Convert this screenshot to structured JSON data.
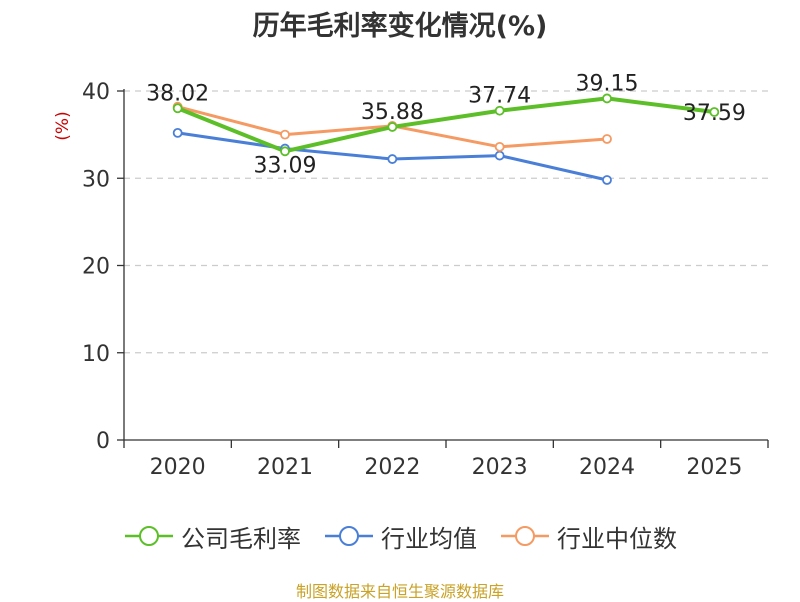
{
  "chart_data": {
    "type": "line",
    "title": "历年毛利率变化情况(%)",
    "ylabel": "(%)",
    "xlabel": "",
    "categories": [
      "2020",
      "2021",
      "2022",
      "2023",
      "2024",
      "2025"
    ],
    "ylim": [
      0,
      40
    ],
    "yticks": [
      0,
      10,
      20,
      30,
      40
    ],
    "grid": true,
    "legend_position": "bottom",
    "series": [
      {
        "name": "公司毛利率",
        "color": "#5cbf28",
        "values": [
          38.02,
          33.09,
          35.88,
          37.74,
          39.15,
          37.59
        ],
        "labels": [
          "38.02",
          "33.09",
          "35.88",
          "37.74",
          "39.15",
          "37.59"
        ]
      },
      {
        "name": "行业均值",
        "color": "#4a7fd8",
        "values": [
          35.2,
          33.4,
          32.2,
          32.6,
          29.8,
          null
        ]
      },
      {
        "name": "行业中位数",
        "color": "#f49a62",
        "values": [
          38.2,
          35.0,
          36.0,
          33.6,
          34.5,
          null
        ]
      }
    ]
  },
  "source_note": "制图数据来自恒生聚源数据库",
  "colors": {
    "ylabel": "#cc0000",
    "axis": "#333333",
    "grid": "#cccccc",
    "source": "#c9a227"
  }
}
